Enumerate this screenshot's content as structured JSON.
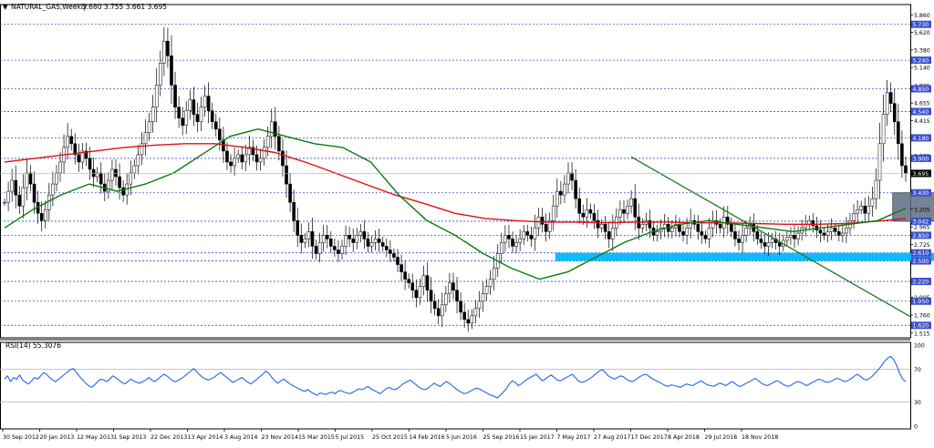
{
  "header": {
    "symbol": "NATURAL_GAS,Weekly",
    "ohlc": "3.680 3.755 3.661 3.695"
  },
  "rsi": {
    "label": "RSI(14) 55.3076",
    "levels": [
      70,
      30
    ],
    "scale_labels": [
      "100",
      "70",
      "30",
      "0"
    ],
    "color": "#1e66e6",
    "values": [
      58,
      62,
      55,
      60,
      58,
      63,
      57,
      54,
      52,
      56,
      60,
      58,
      62,
      66,
      64,
      60,
      57,
      55,
      58,
      61,
      64,
      67,
      70,
      71,
      66,
      61,
      57,
      53,
      50,
      48,
      51,
      55,
      58,
      57,
      55,
      58,
      62,
      60,
      57,
      54,
      52,
      55,
      58,
      56,
      54,
      53,
      55,
      57,
      60,
      57,
      55,
      58,
      61,
      64,
      62,
      59,
      56,
      55,
      57,
      59,
      62,
      65,
      68,
      71,
      67,
      63,
      60,
      58,
      57,
      59,
      61,
      64,
      66,
      63,
      60,
      57,
      54,
      56,
      58,
      60,
      57,
      54,
      52,
      55,
      58,
      61,
      64,
      68,
      65,
      60,
      56,
      53,
      56,
      58,
      55,
      52,
      50,
      48,
      46,
      44,
      43,
      45,
      42,
      40,
      38,
      41,
      40,
      39,
      41,
      42,
      40,
      43,
      44,
      42,
      41,
      40,
      42,
      44,
      46,
      45,
      47,
      49,
      46,
      44,
      42,
      40,
      43,
      46,
      48,
      46,
      45,
      47,
      50,
      53,
      55,
      57,
      54,
      51,
      48,
      46,
      45,
      47,
      50,
      53,
      51,
      49,
      52,
      55,
      53,
      50,
      47,
      44,
      42,
      40,
      41,
      43,
      45,
      47,
      46,
      44,
      42,
      40,
      38,
      37,
      35,
      38,
      42,
      46,
      52,
      56,
      54,
      50,
      52,
      55,
      58,
      60,
      62,
      64,
      60,
      56,
      58,
      61,
      63,
      60,
      57,
      56,
      58,
      60,
      62,
      64,
      60,
      56,
      54,
      55,
      57,
      59,
      62,
      65,
      68,
      70,
      66,
      62,
      60,
      58,
      60,
      62,
      61,
      58,
      56,
      55,
      57,
      60,
      62,
      64,
      63,
      60,
      58,
      56,
      54,
      52,
      50,
      49,
      51,
      50,
      49,
      48,
      50,
      52,
      51,
      50,
      52,
      54,
      56,
      53,
      51,
      50,
      49,
      51,
      53,
      52,
      50,
      52,
      55,
      53,
      50,
      49,
      51,
      53,
      55,
      57,
      59,
      56,
      53,
      51,
      50,
      52,
      54,
      56,
      55,
      52,
      50,
      49,
      51,
      53,
      55,
      54,
      52,
      50,
      52,
      54,
      56,
      58,
      57,
      55,
      54,
      55,
      57,
      59,
      58,
      56,
      55,
      57,
      59,
      62,
      64,
      61,
      58,
      57,
      59,
      62,
      66,
      70,
      75,
      80,
      84,
      86,
      82,
      75,
      65,
      58,
      55
    ],
    "ylim": [
      0,
      100
    ]
  },
  "chart_data": {
    "type": "candlestick",
    "symbol": "NATURAL_GAS",
    "timeframe": "Weekly",
    "last_price": "3.695",
    "ylim": [
      1.45,
      6.0
    ],
    "price_ticks": [
      "5.860",
      "5.620",
      "5.380",
      "5.140",
      "4.895",
      "4.655",
      "4.415",
      "4.180",
      "3.935",
      "3.445",
      "3.205",
      "2.965",
      "2.725",
      "2.485",
      "2.245",
      "2.005",
      "1.760",
      "1.515"
    ],
    "highlight_labels": [
      {
        "text": "5.730",
        "value": 5.73
      },
      {
        "text": "5.240",
        "value": 5.24
      },
      {
        "text": "4.850",
        "value": 4.85
      },
      {
        "text": "4.540",
        "value": 4.54
      },
      {
        "text": "4.180",
        "value": 4.18
      },
      {
        "text": "3.900",
        "value": 3.9
      },
      {
        "text": "3.430",
        "value": 3.43
      },
      {
        "text": "3.042",
        "value": 3.042
      },
      {
        "text": "2.850",
        "value": 2.85
      },
      {
        "text": "2.610",
        "value": 2.61
      },
      {
        "text": "2.500",
        "value": 2.5
      },
      {
        "text": "2.220",
        "value": 2.22
      },
      {
        "text": "1.950",
        "value": 1.95
      },
      {
        "text": "1.620",
        "value": 1.62
      }
    ],
    "horizontal_levels": [
      5.73,
      5.24,
      4.85,
      4.54,
      4.18,
      3.9,
      3.43,
      3.042,
      2.85,
      2.61,
      2.5,
      2.22,
      1.95,
      1.62
    ],
    "date_labels": [
      "30 Sep 2012",
      "20 Jan 2013",
      "12 May 2013",
      "1 Sep 2013",
      "22 Dec 2013",
      "13 Apr 2014",
      "3 Aug 2014",
      "23 Nov 2014",
      "15 Mar 2015",
      "5 Jul 2015",
      "25 Oct 2015",
      "14 Feb 2016",
      "5 Jun 2016",
      "25 Sep 2016",
      "15 Jan 2017",
      "7 May 2017",
      "27 Aug 2017",
      "17 Dec 2017",
      "8 Apr 2018",
      "29 Jul 2018",
      "18 Nov 2018"
    ],
    "closes": [
      3.3,
      3.45,
      3.6,
      3.4,
      3.25,
      3.5,
      3.7,
      3.55,
      3.3,
      3.15,
      3.05,
      3.2,
      3.4,
      3.55,
      3.7,
      3.85,
      4.05,
      4.2,
      4.1,
      3.95,
      3.85,
      4.0,
      3.9,
      3.75,
      3.65,
      3.7,
      3.55,
      3.45,
      3.6,
      3.75,
      3.65,
      3.5,
      3.4,
      3.55,
      3.7,
      3.8,
      3.95,
      4.1,
      4.25,
      4.4,
      4.6,
      4.9,
      5.2,
      5.5,
      5.3,
      4.9,
      4.6,
      4.45,
      4.35,
      4.55,
      4.7,
      4.5,
      4.4,
      4.6,
      4.75,
      4.55,
      4.4,
      4.3,
      4.15,
      4.0,
      3.85,
      3.8,
      3.9,
      3.95,
      3.85,
      3.95,
      4.05,
      3.95,
      3.85,
      3.9,
      4.05,
      4.2,
      4.4,
      4.2,
      4.0,
      3.8,
      3.55,
      3.3,
      3.05,
      2.85,
      2.75,
      2.8,
      2.9,
      2.7,
      2.6,
      2.75,
      2.85,
      2.8,
      2.7,
      2.65,
      2.6,
      2.7,
      2.85,
      2.8,
      2.75,
      2.85,
      2.9,
      2.8,
      2.7,
      2.75,
      2.8,
      2.75,
      2.7,
      2.65,
      2.6,
      2.55,
      2.45,
      2.35,
      2.25,
      2.2,
      2.1,
      2.0,
      2.15,
      2.3,
      2.1,
      1.95,
      1.85,
      1.75,
      1.9,
      2.05,
      2.2,
      2.1,
      1.95,
      1.8,
      1.7,
      1.65,
      1.75,
      1.85,
      1.95,
      2.05,
      2.15,
      2.25,
      2.4,
      2.6,
      2.75,
      2.85,
      2.8,
      2.7,
      2.75,
      2.8,
      2.9,
      2.85,
      2.8,
      2.95,
      3.1,
      3.0,
      2.9,
      3.05,
      3.25,
      3.45,
      3.4,
      3.55,
      3.7,
      3.6,
      3.35,
      3.15,
      3.1,
      3.2,
      3.15,
      3.05,
      2.95,
      3.0,
      2.9,
      2.8,
      2.95,
      3.1,
      3.2,
      3.15,
      3.25,
      3.35,
      3.1,
      2.95,
      3.0,
      3.05,
      2.95,
      2.85,
      2.9,
      2.95,
      3.0,
      2.9,
      2.95,
      3.0,
      2.9,
      2.85,
      2.95,
      3.05,
      3.0,
      2.9,
      2.85,
      2.8,
      2.95,
      3.05,
      3.0,
      2.95,
      3.1,
      3.0,
      2.9,
      2.8,
      2.75,
      2.85,
      2.95,
      3.0,
      2.9,
      2.8,
      2.75,
      2.7,
      2.75,
      2.8,
      2.75,
      2.7,
      2.78,
      2.82,
      2.85,
      2.8,
      2.88,
      2.95,
      3.0,
      3.05,
      2.98,
      2.92,
      2.88,
      2.85,
      2.9,
      2.95,
      2.9,
      2.85,
      2.88,
      2.95,
      3.05,
      3.15,
      3.2,
      3.25,
      3.15,
      3.25,
      3.35,
      3.6,
      4.1,
      4.5,
      4.8,
      4.65,
      4.4,
      4.1,
      3.8,
      3.695
    ],
    "ema200": [
      3.85,
      3.9,
      3.95,
      4.0,
      4.05,
      4.08,
      4.1,
      4.1,
      4.05,
      3.98,
      3.85,
      3.7,
      3.55,
      3.4,
      3.28,
      3.15,
      3.08,
      3.05,
      3.03,
      3.03,
      3.02,
      3.03,
      3.03,
      3.02,
      3.02,
      3.01,
      3.0,
      3.0,
      3.01,
      3.04,
      3.08
    ],
    "ema50": [
      2.95,
      3.2,
      3.4,
      3.55,
      3.45,
      3.55,
      3.7,
      3.95,
      4.2,
      4.3,
      4.2,
      4.1,
      4.05,
      3.85,
      3.4,
      3.05,
      2.85,
      2.6,
      2.4,
      2.25,
      2.35,
      2.55,
      2.75,
      2.9,
      3.0,
      3.05,
      3.0,
      2.95,
      2.9,
      2.95,
      3.0,
      3.05,
      3.22
    ],
    "zones": [
      {
        "from_week": 240,
        "to_week": 263,
        "low": 3.042,
        "high": 3.43,
        "color": "#5f6d80"
      },
      {
        "from_week": 149,
        "to_week": 265,
        "low": 2.5,
        "high": 2.61,
        "color": "#00b7ff"
      }
    ],
    "trendline": {
      "start": [
        169,
        3.92
      ],
      "end": [
        320,
        1.74
      ],
      "color": "#1a7a1a"
    }
  }
}
